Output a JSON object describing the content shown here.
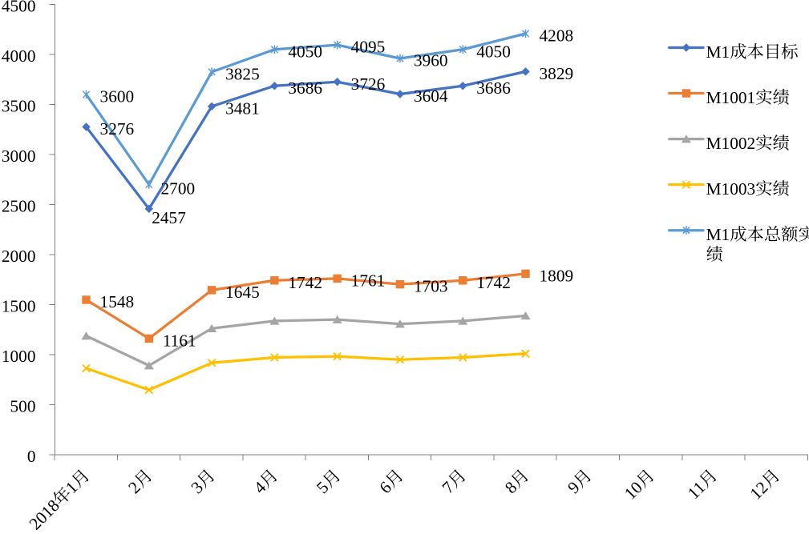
{
  "chart_data": {
    "type": "line",
    "title": "",
    "categories": [
      "2018年1月",
      "2月",
      "3月",
      "4月",
      "5月",
      "6月",
      "7月",
      "8月",
      "9月",
      "10月",
      "11月",
      "12月"
    ],
    "xlabel": "",
    "ylabel": "",
    "ylim": [
      0,
      4500
    ],
    "ytick_step": 500,
    "y_tick_labels": [
      "4500",
      "4000",
      "3500",
      "3000",
      "2500",
      "2000",
      "1500",
      "1000",
      "500",
      "0"
    ],
    "grid": false,
    "legend_position": "right",
    "background_color": "#ffffff",
    "axis_color": "#808080",
    "text_color": "#000000",
    "series": [
      {
        "name": "M1成本目标",
        "color": "#4472c4",
        "marker": "diamond",
        "data_labels": true,
        "values": [
          3276,
          2457,
          3481,
          3686,
          3726,
          3604,
          3686,
          3829
        ]
      },
      {
        "name": "M1001实绩",
        "color": "#ed7d31",
        "marker": "square",
        "data_labels": true,
        "values": [
          1548,
          1161,
          1645,
          1742,
          1761,
          1703,
          1742,
          1809
        ]
      },
      {
        "name": "M1002实绩",
        "color": "#a5a5a5",
        "marker": "triangle",
        "data_labels": false,
        "values": [
          1188,
          891,
          1262,
          1337,
          1351,
          1307,
          1337,
          1389
        ]
      },
      {
        "name": "M1003实绩",
        "color": "#ffc000",
        "marker": "x",
        "data_labels": false,
        "values": [
          864,
          648,
          918,
          972,
          983,
          950,
          972,
          1010
        ]
      },
      {
        "name": "M1成本总额实绩",
        "color": "#5b9bd5",
        "marker": "star",
        "data_labels": true,
        "values": [
          3600,
          2700,
          3825,
          4050,
          4095,
          3960,
          4050,
          4208
        ]
      }
    ],
    "legend": {
      "items": [
        {
          "label": "M1成本目标",
          "lines": [
            "M1成本目标"
          ]
        },
        {
          "label": "M1001实绩",
          "lines": [
            "M1001实绩"
          ]
        },
        {
          "label": "M1002实绩",
          "lines": [
            "M1002实绩"
          ]
        },
        {
          "label": "M1003实绩",
          "lines": [
            "M1003实绩"
          ]
        },
        {
          "label": "M1成本总额实绩",
          "lines": [
            "M1成本总额实",
            "绩"
          ]
        }
      ]
    }
  }
}
